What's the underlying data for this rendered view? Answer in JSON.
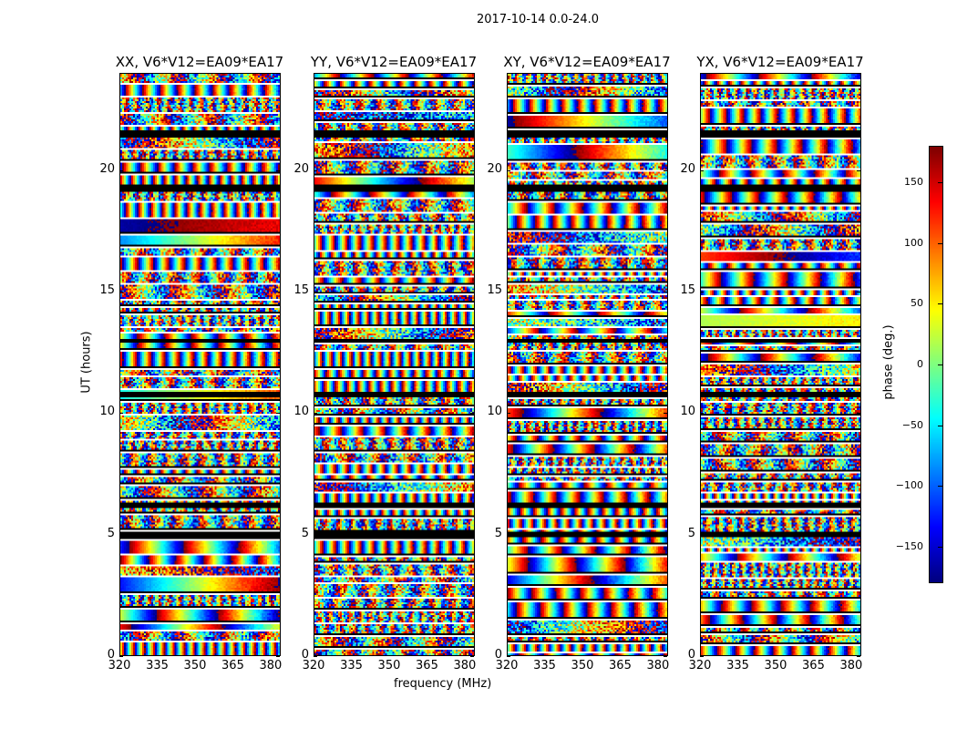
{
  "chart_data": {
    "type": "heatmap",
    "suptitle": "2017-10-14 0.0-24.0",
    "panels": [
      {
        "title": "XX, V6*V12=EA09*EA17",
        "seed": 11
      },
      {
        "title": "YY, V6*V12=EA09*EA17",
        "seed": 23
      },
      {
        "title": "XY, V6*V12=EA09*EA17",
        "seed": 37
      },
      {
        "title": "YX, V6*V12=EA09*EA17",
        "seed": 51
      }
    ],
    "xlabel": "frequency (MHz)",
    "ylabel": "UT (hours)",
    "xlim": [
      320,
      384
    ],
    "ylim": [
      0,
      24
    ],
    "xticks": [
      320,
      335,
      350,
      365,
      380
    ],
    "yticks": [
      0,
      5,
      10,
      15,
      20
    ],
    "value": "phase per frequency channel and time (noisy and fringing scans, flagged gaps white)",
    "flagged_black_bands_ut": [
      [
        19.2,
        19.4
      ],
      [
        21.4,
        21.6
      ],
      [
        6.1,
        6.25
      ],
      [
        4.95,
        5.05
      ],
      [
        12.9,
        13.05
      ],
      [
        10.7,
        10.8
      ]
    ],
    "colorbar": {
      "label": "phase (deg.)",
      "range": [
        -180,
        180
      ],
      "ticks": [
        150,
        100,
        50,
        0,
        -50,
        -100,
        -150
      ],
      "tick_labels": [
        "150",
        "100",
        "50",
        "0",
        "−50",
        "−100",
        "−150"
      ],
      "colormap": "jet"
    }
  }
}
